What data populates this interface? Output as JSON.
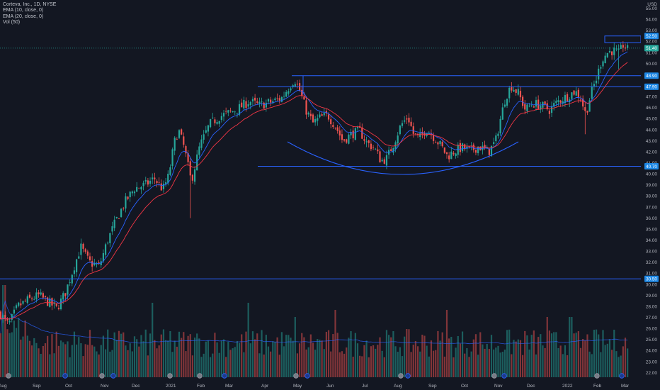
{
  "legend": {
    "title": "Corteva, Inc., 1D, NYSE",
    "ema10": "EMA (10, close, 0)",
    "ema20": "EMA (20, close, 0)",
    "vol": "Vol (50)"
  },
  "chart_data": {
    "type": "candlestick",
    "y_axis": {
      "side": "right",
      "unit_label": "USD",
      "range": [
        21.4,
        55.5
      ],
      "ticks": [
        "55.00",
        "54.00",
        "53.00",
        "52.00",
        "51.00",
        "50.00",
        "49.00",
        "48.00",
        "47.00",
        "46.00",
        "45.00",
        "44.00",
        "43.00",
        "42.00",
        "41.00",
        "40.00",
        "39.00",
        "38.00",
        "37.00",
        "36.00",
        "35.00",
        "34.00",
        "33.00",
        "32.00",
        "31.00",
        "30.00",
        "29.00",
        "28.00",
        "27.00",
        "26.00",
        "25.00",
        "24.00",
        "23.00",
        "22.00"
      ]
    },
    "x_axis": {
      "range": [
        0,
        932
      ],
      "labels": [
        {
          "text": "Aug",
          "x": -2
        },
        {
          "text": "Sep",
          "x": 46
        },
        {
          "text": "Oct",
          "x": 92
        },
        {
          "text": "Nov",
          "x": 142
        },
        {
          "text": "Dec",
          "x": 186
        },
        {
          "text": "2021",
          "x": 234
        },
        {
          "text": "Feb",
          "x": 278
        },
        {
          "text": "Mar",
          "x": 318
        },
        {
          "text": "Apr",
          "x": 369
        },
        {
          "text": "May",
          "x": 414
        },
        {
          "text": "Jun",
          "x": 461
        },
        {
          "text": "Jul",
          "x": 511
        },
        {
          "text": "Aug",
          "x": 556
        },
        {
          "text": "Sep",
          "x": 605
        },
        {
          "text": "Oct",
          "x": 651
        },
        {
          "text": "Nov",
          "x": 698
        },
        {
          "text": "Dec",
          "x": 744
        },
        {
          "text": "2022",
          "x": 794
        },
        {
          "text": "Feb",
          "x": 838
        },
        {
          "text": "Mar",
          "x": 877
        }
      ]
    },
    "price_path": [
      [
        0,
        27.4
      ],
      [
        12,
        26.3
      ],
      [
        25,
        28.0
      ],
      [
        40,
        28.6
      ],
      [
        55,
        29.0
      ],
      [
        68,
        28.4
      ],
      [
        80,
        27.8
      ],
      [
        92,
        29.2
      ],
      [
        103,
        31.3
      ],
      [
        114,
        33.4
      ],
      [
        126,
        32.0
      ],
      [
        140,
        31.6
      ],
      [
        152,
        34.0
      ],
      [
        164,
        35.8
      ],
      [
        176,
        37.4
      ],
      [
        190,
        38.7
      ],
      [
        205,
        39.0
      ],
      [
        218,
        39.6
      ],
      [
        230,
        38.6
      ],
      [
        238,
        39.8
      ],
      [
        246,
        42.8
      ],
      [
        252,
        44.0
      ],
      [
        260,
        42.4
      ],
      [
        270,
        39.3
      ],
      [
        282,
        42.5
      ],
      [
        296,
        44.5
      ],
      [
        310,
        45.2
      ],
      [
        322,
        45.5
      ],
      [
        336,
        45.9
      ],
      [
        352,
        46.6
      ],
      [
        366,
        46.2
      ],
      [
        382,
        46.5
      ],
      [
        398,
        46.9
      ],
      [
        408,
        47.9
      ],
      [
        416,
        48.6
      ],
      [
        424,
        47.4
      ],
      [
        432,
        45.8
      ],
      [
        442,
        44.6
      ],
      [
        452,
        45.1
      ],
      [
        463,
        45.3
      ],
      [
        474,
        44.3
      ],
      [
        484,
        43.0
      ],
      [
        496,
        43.6
      ],
      [
        508,
        43.9
      ],
      [
        518,
        42.8
      ],
      [
        528,
        42.4
      ],
      [
        538,
        41.2
      ],
      [
        546,
        41.4
      ],
      [
        556,
        42.8
      ],
      [
        566,
        44.4
      ],
      [
        576,
        45.2
      ],
      [
        584,
        43.6
      ],
      [
        592,
        43.2
      ],
      [
        602,
        44.1
      ],
      [
        612,
        43.4
      ],
      [
        622,
        42.6
      ],
      [
        632,
        41.6
      ],
      [
        640,
        42.0
      ],
      [
        652,
        42.4
      ],
      [
        664,
        42.1
      ],
      [
        676,
        42.5
      ],
      [
        690,
        42.0
      ],
      [
        700,
        43.0
      ],
      [
        706,
        44.8
      ],
      [
        714,
        47.0
      ],
      [
        722,
        48.0
      ],
      [
        732,
        47.3
      ],
      [
        742,
        45.8
      ],
      [
        752,
        46.4
      ],
      [
        764,
        46.2
      ],
      [
        776,
        45.8
      ],
      [
        788,
        46.6
      ],
      [
        800,
        47.0
      ],
      [
        812,
        47.5
      ],
      [
        820,
        46.9
      ],
      [
        827,
        45.4
      ],
      [
        835,
        47.4
      ],
      [
        842,
        48.6
      ],
      [
        850,
        50.4
      ],
      [
        858,
        51.0
      ],
      [
        866,
        51.2
      ],
      [
        874,
        50.9
      ],
      [
        880,
        51.7
      ],
      [
        888,
        51.1
      ]
    ],
    "ema10_color": "#2962ff",
    "ema20_color": "#f23645",
    "current_price": 51.4,
    "annotations": {
      "horizontal_lines": [
        {
          "y": 30.5,
          "label": "30.50"
        },
        {
          "y": 40.7,
          "label": "40.70"
        },
        {
          "y": 47.9,
          "label": "47.90"
        },
        {
          "y": 48.9,
          "label": "48.90"
        }
      ],
      "zone_box": {
        "top": 52.5,
        "bottom": 51.9,
        "label": "52.50"
      },
      "current_label": "51.40",
      "rounding_bottom": true
    },
    "volume": {
      "series_name": "Vol",
      "ma_period": 50
    },
    "colors": {
      "background": "#131722",
      "up": "#26a69a",
      "down": "#ef5350",
      "drawing": "#2962ff",
      "axis_text": "#b2b5be",
      "badge": "#1e88e5"
    }
  }
}
